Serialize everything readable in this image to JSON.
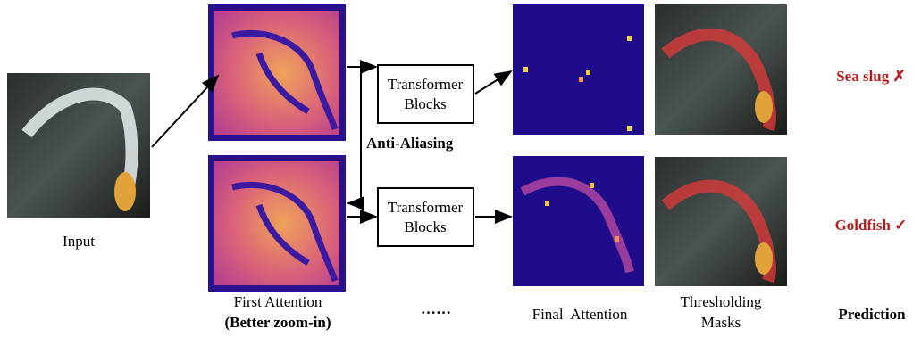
{
  "input": {
    "label": "Input"
  },
  "rows": [
    {
      "block": [
        "Transformer",
        "Blocks"
      ],
      "prediction": "Sea slug ✗"
    },
    {
      "block": [
        "Transformer",
        "Blocks"
      ],
      "prediction": "Goldfish ✓"
    }
  ],
  "anti_aliasing": "Anti-Aliasing",
  "captions": {
    "first_attention": [
      "First Attention",
      "(Better zoom-in)"
    ],
    "ellipsis": "……",
    "final_attention": "Final  Attention",
    "thresholding_masks": [
      "Thresholding",
      "Masks"
    ],
    "prediction": "Prediction"
  }
}
